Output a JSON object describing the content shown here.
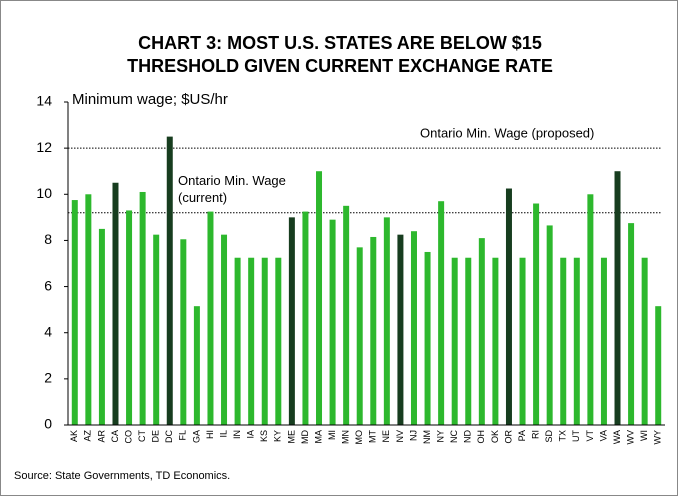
{
  "chart_data": {
    "type": "bar",
    "title": [
      "CHART 3: MOST U.S. STATES ARE BELOW $15",
      "THRESHOLD GIVEN CURRENT EXCHANGE RATE"
    ],
    "y_axis_label": "Minimum wage; $US/hr",
    "source": "Source: State Governments, TD Economics.",
    "categories": [
      "AK",
      "AZ",
      "AR",
      "CA",
      "CO",
      "CT",
      "DE",
      "DC",
      "FL",
      "GA",
      "HI",
      "IL",
      "IN",
      "IA",
      "KS",
      "KY",
      "ME",
      "MD",
      "MA",
      "MI",
      "MN",
      "MO",
      "MT",
      "NE",
      "NV",
      "NJ",
      "NM",
      "NY",
      "NC",
      "ND",
      "OH",
      "OK",
      "OR",
      "PA",
      "RI",
      "SD",
      "TX",
      "UT",
      "VT",
      "VA",
      "WA",
      "WV",
      "WI",
      "WY"
    ],
    "values": [
      9.75,
      10.0,
      8.5,
      10.5,
      9.3,
      10.1,
      8.25,
      12.5,
      8.05,
      5.15,
      9.25,
      8.25,
      7.25,
      7.25,
      7.25,
      7.25,
      9.0,
      9.25,
      11.0,
      8.9,
      9.5,
      7.7,
      8.15,
      9.0,
      8.25,
      8.4,
      7.5,
      9.7,
      7.25,
      7.25,
      8.1,
      7.25,
      10.25,
      7.25,
      9.6,
      8.65,
      7.25,
      7.25,
      10.0,
      7.25,
      11.0,
      8.75,
      7.25,
      5.15
    ],
    "bar_colors": [
      "#2db82d",
      "#2db82d",
      "#2db82d",
      "#173d1f",
      "#2db82d",
      "#2db82d",
      "#2db82d",
      "#173d1f",
      "#2db82d",
      "#2db82d",
      "#2db82d",
      "#2db82d",
      "#2db82d",
      "#2db82d",
      "#2db82d",
      "#2db82d",
      "#173d1f",
      "#2db82d",
      "#2db82d",
      "#2db82d",
      "#2db82d",
      "#2db82d",
      "#2db82d",
      "#2db82d",
      "#173d1f",
      "#2db82d",
      "#2db82d",
      "#2db82d",
      "#2db82d",
      "#2db82d",
      "#2db82d",
      "#2db82d",
      "#173d1f",
      "#2db82d",
      "#2db82d",
      "#2db82d",
      "#2db82d",
      "#2db82d",
      "#2db82d",
      "#2db82d",
      "#173d1f",
      "#2db82d",
      "#2db82d",
      "#2db82d"
    ],
    "reference_lines": [
      {
        "value": 12.0,
        "label": [
          "Ontario Min. Wage (proposed)"
        ]
      },
      {
        "value": 9.2,
        "label": [
          "Ontario Min. Wage",
          "(current)"
        ]
      }
    ],
    "ylim": [
      0,
      14
    ],
    "yticks": [
      0,
      2,
      4,
      6,
      8,
      10,
      12,
      14
    ]
  }
}
